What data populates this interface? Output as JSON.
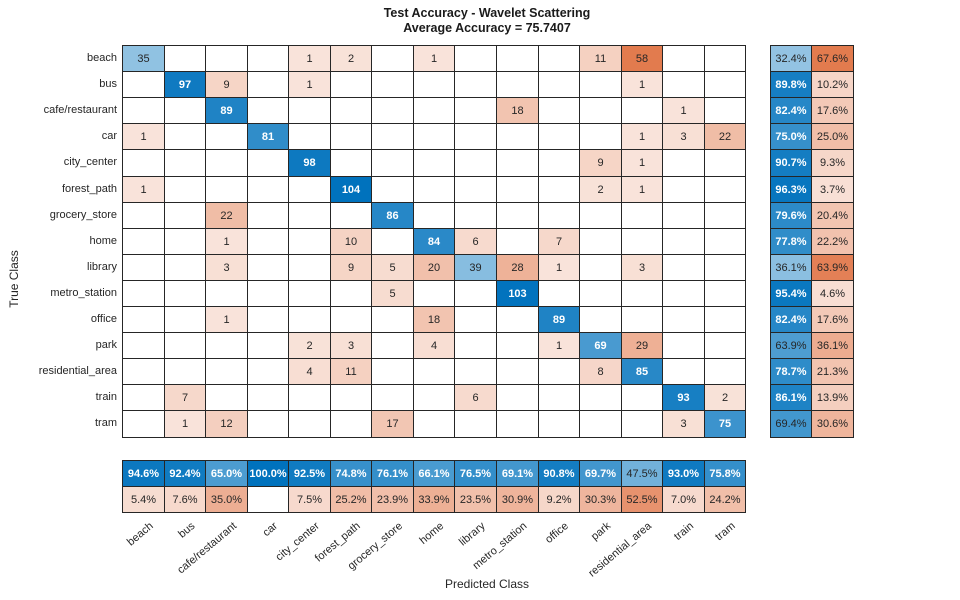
{
  "title": {
    "line1": "Test Accuracy - Wavelet Scattering",
    "line2": "Average Accuracy = 75.7407"
  },
  "xlabel": "Predicted Class",
  "ylabel": "True Class",
  "chart_data": {
    "type": "heatmap",
    "subtype": "confusion-matrix",
    "classes": [
      "beach",
      "bus",
      "cafe/restaurant",
      "car",
      "city_center",
      "forest_path",
      "grocery_store",
      "home",
      "library",
      "metro_station",
      "office",
      "park",
      "residential_area",
      "train",
      "tram"
    ],
    "matrix": [
      [
        35,
        0,
        0,
        0,
        1,
        2,
        0,
        1,
        0,
        0,
        0,
        11,
        58,
        0,
        0
      ],
      [
        0,
        97,
        9,
        0,
        1,
        0,
        0,
        0,
        0,
        0,
        0,
        0,
        1,
        0,
        0
      ],
      [
        0,
        0,
        89,
        0,
        0,
        0,
        0,
        0,
        0,
        18,
        0,
        0,
        0,
        1,
        0
      ],
      [
        1,
        0,
        0,
        81,
        0,
        0,
        0,
        0,
        0,
        0,
        0,
        0,
        1,
        3,
        22
      ],
      [
        0,
        0,
        0,
        0,
        98,
        0,
        0,
        0,
        0,
        0,
        0,
        9,
        1,
        0,
        0
      ],
      [
        1,
        0,
        0,
        0,
        0,
        104,
        0,
        0,
        0,
        0,
        0,
        2,
        1,
        0,
        0
      ],
      [
        0,
        0,
        22,
        0,
        0,
        0,
        86,
        0,
        0,
        0,
        0,
        0,
        0,
        0,
        0
      ],
      [
        0,
        0,
        1,
        0,
        0,
        10,
        0,
        84,
        6,
        0,
        7,
        0,
        0,
        0,
        0
      ],
      [
        0,
        0,
        3,
        0,
        0,
        9,
        5,
        20,
        39,
        28,
        1,
        0,
        3,
        0,
        0
      ],
      [
        0,
        0,
        0,
        0,
        0,
        0,
        5,
        0,
        0,
        103,
        0,
        0,
        0,
        0,
        0
      ],
      [
        0,
        0,
        1,
        0,
        0,
        0,
        0,
        18,
        0,
        0,
        89,
        0,
        0,
        0,
        0
      ],
      [
        0,
        0,
        0,
        0,
        2,
        3,
        0,
        4,
        0,
        0,
        1,
        69,
        29,
        0,
        0
      ],
      [
        0,
        0,
        0,
        0,
        4,
        11,
        0,
        0,
        0,
        0,
        0,
        8,
        85,
        0,
        0
      ],
      [
        0,
        7,
        0,
        0,
        0,
        0,
        0,
        0,
        6,
        0,
        0,
        0,
        0,
        93,
        2
      ],
      [
        0,
        1,
        12,
        0,
        0,
        0,
        17,
        0,
        0,
        0,
        0,
        0,
        0,
        3,
        75
      ]
    ],
    "row_summary": {
      "correct_pct": [
        32.4,
        89.8,
        82.4,
        75.0,
        90.7,
        96.3,
        79.6,
        77.8,
        36.1,
        95.4,
        82.4,
        63.9,
        78.7,
        86.1,
        69.4
      ],
      "incorrect_pct": [
        67.6,
        10.2,
        17.6,
        25.0,
        9.3,
        3.7,
        20.4,
        22.2,
        63.9,
        4.6,
        17.6,
        36.1,
        21.3,
        13.9,
        30.6
      ]
    },
    "col_summary": {
      "correct_pct": [
        94.6,
        92.4,
        65.0,
        100.0,
        92.5,
        74.8,
        76.1,
        66.1,
        76.5,
        69.1,
        90.8,
        69.7,
        47.5,
        93.0,
        75.8
      ],
      "incorrect_pct": [
        5.4,
        7.6,
        35.0,
        null,
        7.5,
        25.2,
        23.9,
        33.9,
        23.5,
        30.9,
        9.2,
        30.3,
        52.5,
        7.0,
        24.2
      ]
    },
    "colors": {
      "diagonal_base": "#0072BD",
      "offdiagonal_base": "#D95319",
      "empty_cell": "#FFFFFF",
      "grid_line": "#262626",
      "text_dark": "#262626",
      "text_light": "#FFFFFF"
    },
    "value_max": 104,
    "offdiag_max": 58,
    "grid": true,
    "legend": "none"
  }
}
